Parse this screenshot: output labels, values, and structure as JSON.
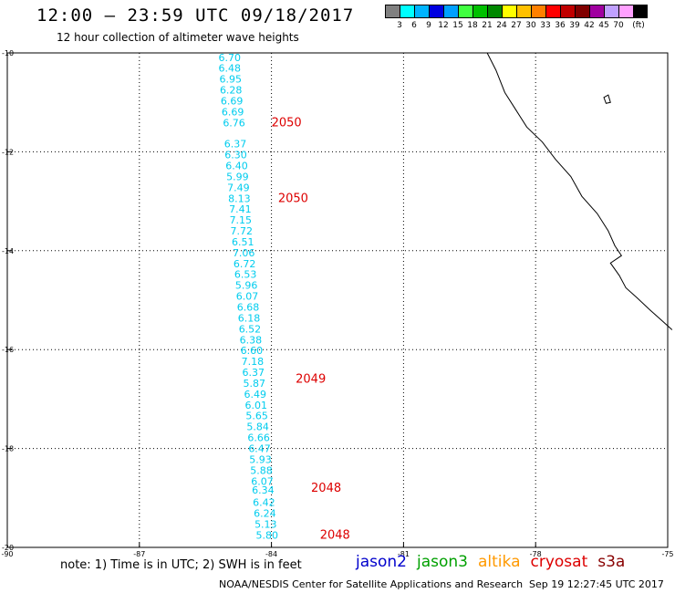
{
  "title": "12:00 – 23:59 UTC 09/18/2017",
  "subtitle": "12 hour collection of altimeter wave heights",
  "legend": {
    "colors": [
      "#808080",
      "#00ffff",
      "#00b4ff",
      "#0000e0",
      "#00a0ff",
      "#40ff40",
      "#00c000",
      "#008800",
      "#ffff00",
      "#ffc000",
      "#ff8000",
      "#ff0000",
      "#c00000",
      "#800000",
      "#a000a0",
      "#c0a0ff",
      "#ffa0ff",
      "#000000"
    ],
    "labels": [
      "3",
      "6",
      "9",
      "12",
      "15",
      "18",
      "21",
      "24",
      "27",
      "30",
      "33",
      "36",
      "39",
      "42",
      "45",
      "70",
      "(ft)"
    ]
  },
  "lat_labels": [
    "-10",
    "-12",
    "-14",
    "-16",
    "-18",
    "-20"
  ],
  "lon_labels": [
    "-90",
    "-87",
    "-84",
    "-81",
    "-78",
    "-75"
  ],
  "map_data": {
    "lon_range": [
      -90,
      -75
    ],
    "lat_range": [
      -20,
      -10
    ],
    "swh_color": "#00ccee",
    "pass_color": "#dd0000",
    "swh_values": [
      {
        "v": "6.70",
        "lon": -84.95,
        "lat": -10.07
      },
      {
        "v": "6.48",
        "lon": -84.95,
        "lat": -10.29
      },
      {
        "v": "6.95",
        "lon": -84.93,
        "lat": -10.51
      },
      {
        "v": "6.28",
        "lon": -84.92,
        "lat": -10.73
      },
      {
        "v": "6.69",
        "lon": -84.9,
        "lat": -10.95
      },
      {
        "v": "6.69",
        "lon": -84.88,
        "lat": -11.17
      },
      {
        "v": "6.76",
        "lon": -84.85,
        "lat": -11.39
      },
      {
        "v": "6.37",
        "lon": -84.82,
        "lat": -11.82
      },
      {
        "v": "6.30",
        "lon": -84.81,
        "lat": -12.04
      },
      {
        "v": "6.40",
        "lon": -84.79,
        "lat": -12.26
      },
      {
        "v": "5.99",
        "lon": -84.77,
        "lat": -12.48
      },
      {
        "v": "7.49",
        "lon": -84.75,
        "lat": -12.7
      },
      {
        "v": "8.13",
        "lon": -84.73,
        "lat": -12.92
      },
      {
        "v": "7.41",
        "lon": -84.71,
        "lat": -13.14
      },
      {
        "v": "7.15",
        "lon": -84.7,
        "lat": -13.36
      },
      {
        "v": "7.72",
        "lon": -84.68,
        "lat": -13.58
      },
      {
        "v": "6.51",
        "lon": -84.65,
        "lat": -13.8
      },
      {
        "v": "7.06",
        "lon": -84.63,
        "lat": -14.02
      },
      {
        "v": "6.72",
        "lon": -84.61,
        "lat": -14.24
      },
      {
        "v": "6.53",
        "lon": -84.59,
        "lat": -14.46
      },
      {
        "v": "5.96",
        "lon": -84.57,
        "lat": -14.68
      },
      {
        "v": "6.07",
        "lon": -84.55,
        "lat": -14.9
      },
      {
        "v": "6.68",
        "lon": -84.53,
        "lat": -15.12
      },
      {
        "v": "6.18",
        "lon": -84.51,
        "lat": -15.34
      },
      {
        "v": "6.52",
        "lon": -84.49,
        "lat": -15.56
      },
      {
        "v": "6.38",
        "lon": -84.47,
        "lat": -15.78
      },
      {
        "v": "6.60",
        "lon": -84.45,
        "lat": -16.0
      },
      {
        "v": "7.18",
        "lon": -84.43,
        "lat": -16.22
      },
      {
        "v": "6.37",
        "lon": -84.41,
        "lat": -16.44
      },
      {
        "v": "5.87",
        "lon": -84.39,
        "lat": -16.66
      },
      {
        "v": "6.49",
        "lon": -84.37,
        "lat": -16.88
      },
      {
        "v": "6.01",
        "lon": -84.35,
        "lat": -17.1
      },
      {
        "v": "5.65",
        "lon": -84.33,
        "lat": -17.32
      },
      {
        "v": "5.84",
        "lon": -84.31,
        "lat": -17.54
      },
      {
        "v": "6.66",
        "lon": -84.29,
        "lat": -17.76
      },
      {
        "v": "6.47",
        "lon": -84.27,
        "lat": -17.98
      },
      {
        "v": "5.93",
        "lon": -84.25,
        "lat": -18.2
      },
      {
        "v": "5.88",
        "lon": -84.23,
        "lat": -18.42
      },
      {
        "v": "6.07",
        "lon": -84.21,
        "lat": -18.64
      },
      {
        "v": "6.34",
        "lon": -84.19,
        "lat": -18.82
      },
      {
        "v": "6.42",
        "lon": -84.17,
        "lat": -19.07
      },
      {
        "v": "6.24",
        "lon": -84.15,
        "lat": -19.29
      },
      {
        "v": "5.13",
        "lon": -84.13,
        "lat": -19.51
      },
      {
        "v": "5.80",
        "lon": -84.1,
        "lat": -19.73
      }
    ],
    "pass_times": [
      {
        "t": "2050",
        "lon": -84.0,
        "lat": -11.39
      },
      {
        "t": "2050",
        "lon": -83.85,
        "lat": -12.92
      },
      {
        "t": "2049",
        "lon": -83.45,
        "lat": -16.58
      },
      {
        "t": "2048",
        "lon": -83.1,
        "lat": -18.78
      },
      {
        "t": "2048",
        "lon": -82.9,
        "lat": -19.73
      }
    ],
    "coastline": [
      [
        -79.1,
        -10.0
      ],
      [
        -78.9,
        -10.35
      ],
      [
        -78.7,
        -10.8
      ],
      [
        -78.45,
        -11.15
      ],
      [
        -78.2,
        -11.5
      ],
      [
        -77.85,
        -11.8
      ],
      [
        -77.55,
        -12.15
      ],
      [
        -77.2,
        -12.5
      ],
      [
        -76.95,
        -12.9
      ],
      [
        -76.6,
        -13.25
      ],
      [
        -76.35,
        -13.6
      ],
      [
        -76.2,
        -13.9
      ],
      [
        -76.05,
        -14.1
      ],
      [
        -76.3,
        -14.25
      ],
      [
        -76.1,
        -14.5
      ],
      [
        -75.95,
        -14.75
      ],
      [
        -75.7,
        -14.95
      ],
      [
        -75.4,
        -15.2
      ],
      [
        -75.15,
        -15.4
      ],
      [
        -74.9,
        -15.6
      ]
    ],
    "island": [
      [
        -76.45,
        -10.9
      ],
      [
        -76.35,
        -10.85
      ],
      [
        -76.3,
        -11.0
      ],
      [
        -76.4,
        -11.02
      ]
    ]
  },
  "note": "note:  1) Time is in UTC; 2) SWH is in feet",
  "satellites": [
    {
      "name": "jason2",
      "color": "#0000cc"
    },
    {
      "name": "jason3",
      "color": "#00a000"
    },
    {
      "name": "altika",
      "color": "#ff9900"
    },
    {
      "name": "cryosat",
      "color": "#dd0000"
    },
    {
      "name": "s3a",
      "color": "#880000"
    }
  ],
  "credit": "NOAA/NESDIS Center for Satellite Applications and Research",
  "timestamp": "Sep 19 12:27:45 UTC 2017"
}
